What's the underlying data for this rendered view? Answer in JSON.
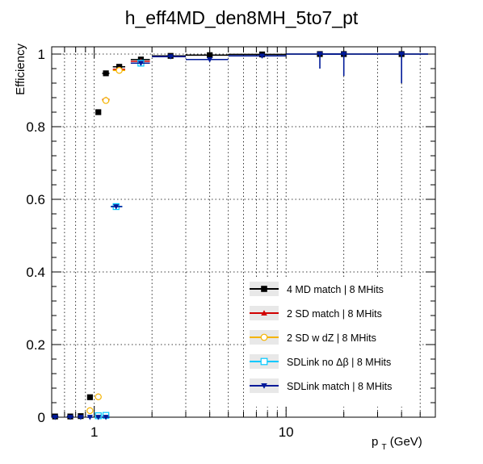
{
  "chart_data": {
    "type": "scatter",
    "title": "h_eff4MD_den8MH_5to7_pt",
    "ylabel": "Efficiency",
    "xlabel_main": "p",
    "xlabel_sub": "T",
    "xlabel_unit": " (GeV)",
    "xscale": "log",
    "xlim": [
      0.6,
      60
    ],
    "ylim": [
      0,
      1.02
    ],
    "grid": true,
    "legend_position": "bottom-right",
    "x_ticks_major": [
      {
        "value": 1,
        "label": "1"
      },
      {
        "value": 10,
        "label": "10"
      }
    ],
    "y_ticks_major": [
      {
        "value": 0,
        "label": "0"
      },
      {
        "value": 0.2,
        "label": "0.2"
      },
      {
        "value": 0.4,
        "label": "0.4"
      },
      {
        "value": 0.6,
        "label": "0.6"
      },
      {
        "value": 0.8,
        "label": "0.8"
      },
      {
        "value": 1,
        "label": "1"
      }
    ],
    "series": [
      {
        "name": "4 MD match | 8 MHits",
        "color": "#000000",
        "marker": "filled-square",
        "points": [
          {
            "x": 0.625,
            "y": 0.002,
            "xlo": 0.6,
            "xhi": 0.65
          },
          {
            "x": 0.75,
            "y": 0.002,
            "xlo": 0.72,
            "xhi": 0.78
          },
          {
            "x": 0.85,
            "y": 0.003,
            "xlo": 0.82,
            "xhi": 0.88
          },
          {
            "x": 0.95,
            "y": 0.055,
            "xlo": 0.92,
            "xhi": 0.98
          },
          {
            "x": 1.05,
            "y": 0.84,
            "xlo": 1.02,
            "xhi": 1.08
          },
          {
            "x": 1.15,
            "y": 0.947,
            "xlo": 1.1,
            "xhi": 1.2
          },
          {
            "x": 1.35,
            "y": 0.965,
            "xlo": 1.25,
            "xhi": 1.45
          },
          {
            "x": 1.75,
            "y": 0.985,
            "xlo": 1.55,
            "xhi": 1.95
          },
          {
            "x": 2.5,
            "y": 0.995,
            "xlo": 2.0,
            "xhi": 3.0
          },
          {
            "x": 4.0,
            "y": 0.997,
            "xlo": 3.0,
            "xhi": 5.0
          },
          {
            "x": 7.5,
            "y": 0.999,
            "xlo": 5.0,
            "xhi": 10.0
          },
          {
            "x": 15,
            "y": 1.0,
            "xlo": 10,
            "xhi": 20,
            "elo": 0.0,
            "ehi": 0.0
          },
          {
            "x": 20,
            "y": 1.0,
            "xlo": 15,
            "xhi": 25
          },
          {
            "x": 40,
            "y": 1.0,
            "xlo": 25,
            "xhi": 55
          }
        ]
      },
      {
        "name": "2 SD match | 8 MHits",
        "color": "#d10000",
        "marker": "filled-triangle",
        "points": [
          {
            "x": 0.95,
            "y": 0.02,
            "xlo": 0.92,
            "xhi": 0.98
          },
          {
            "x": 1.05,
            "y": 0.058,
            "xlo": 1.02,
            "xhi": 1.08
          },
          {
            "x": 1.15,
            "y": 0.875,
            "xlo": 1.1,
            "xhi": 1.2
          },
          {
            "x": 1.35,
            "y": 0.958,
            "xlo": 1.25,
            "xhi": 1.45
          },
          {
            "x": 1.75,
            "y": 0.98,
            "xlo": 1.55,
            "xhi": 1.95
          }
        ]
      },
      {
        "name": "2 SD w dZ | 8 MHits",
        "color": "#f5b400",
        "marker": "open-circle",
        "points": [
          {
            "x": 0.95,
            "y": 0.018,
            "xlo": 0.92,
            "xhi": 0.98
          },
          {
            "x": 1.05,
            "y": 0.056,
            "xlo": 1.02,
            "xhi": 1.08
          },
          {
            "x": 1.15,
            "y": 0.872,
            "xlo": 1.1,
            "xhi": 1.2
          },
          {
            "x": 1.35,
            "y": 0.955,
            "xlo": 1.25,
            "xhi": 1.45
          }
        ]
      },
      {
        "name": "SDLink no Δβ | 8 MHits",
        "color": "#00c8ff",
        "marker": "open-square",
        "points": [
          {
            "x": 1.05,
            "y": 0.004,
            "xlo": 1.02,
            "xhi": 1.08
          },
          {
            "x": 1.15,
            "y": 0.005,
            "xlo": 1.1,
            "xhi": 1.2
          },
          {
            "x": 1.3,
            "y": 0.58,
            "xlo": 1.22,
            "xhi": 1.4
          },
          {
            "x": 1.75,
            "y": 0.975,
            "xlo": 1.55,
            "xhi": 1.95
          }
        ]
      },
      {
        "name": "SDLink match | 8 MHits",
        "color": "#001a99",
        "marker": "filled-down-triangle",
        "points": [
          {
            "x": 0.625,
            "y": 0.0,
            "xlo": 0.6,
            "xhi": 0.65
          },
          {
            "x": 0.75,
            "y": 0.0,
            "xlo": 0.72,
            "xhi": 0.78
          },
          {
            "x": 0.85,
            "y": 0.0,
            "xlo": 0.82,
            "xhi": 0.88
          },
          {
            "x": 0.95,
            "y": 0.0,
            "xlo": 0.92,
            "xhi": 0.98
          },
          {
            "x": 1.05,
            "y": 0.0,
            "xlo": 1.02,
            "xhi": 1.08
          },
          {
            "x": 1.15,
            "y": 0.0,
            "xlo": 1.1,
            "xhi": 1.2
          },
          {
            "x": 1.3,
            "y": 0.58,
            "xlo": 1.22,
            "xhi": 1.4
          },
          {
            "x": 1.75,
            "y": 0.975,
            "xlo": 1.55,
            "xhi": 1.95
          },
          {
            "x": 2.5,
            "y": 0.993,
            "xlo": 2.0,
            "xhi": 3.0
          },
          {
            "x": 4.0,
            "y": 0.985,
            "xlo": 3.0,
            "xhi": 5.0
          },
          {
            "x": 7.5,
            "y": 0.995,
            "xlo": 5.0,
            "xhi": 10.0
          },
          {
            "x": 15,
            "y": 1.0,
            "xlo": 10,
            "xhi": 20,
            "elo": 0.04,
            "ehi": 0.0
          },
          {
            "x": 20,
            "y": 1.0,
            "xlo": 15,
            "xhi": 25,
            "elo": 0.06,
            "ehi": 0.0
          },
          {
            "x": 40,
            "y": 1.0,
            "xlo": 25,
            "xhi": 55,
            "elo": 0.08,
            "ehi": 0.0
          }
        ]
      }
    ]
  }
}
